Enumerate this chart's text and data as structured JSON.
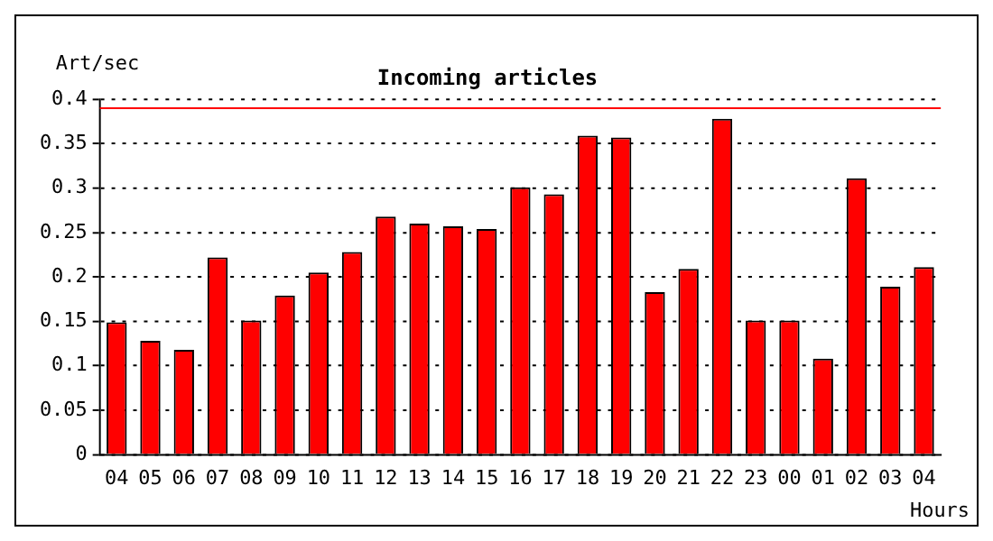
{
  "chart_data": {
    "type": "bar",
    "title": "Incoming articles",
    "ylabel": "Art/sec",
    "xlabel": "Hours",
    "categories": [
      "04",
      "05",
      "06",
      "07",
      "08",
      "09",
      "10",
      "11",
      "12",
      "13",
      "14",
      "15",
      "16",
      "17",
      "18",
      "19",
      "20",
      "21",
      "22",
      "23",
      "00",
      "01",
      "02",
      "03",
      "04"
    ],
    "values": [
      0.149,
      0.128,
      0.118,
      0.222,
      0.151,
      0.179,
      0.205,
      0.228,
      0.268,
      0.26,
      0.257,
      0.254,
      0.301,
      0.293,
      0.359,
      0.357,
      0.183,
      0.209,
      0.378,
      0.151,
      0.151,
      0.108,
      0.311,
      0.189,
      0.211
    ],
    "color": "#ff0000",
    "ylim": [
      0,
      0.4
    ],
    "yticks": [
      0,
      0.05,
      0.1,
      0.15,
      0.2,
      0.25,
      0.3,
      0.35,
      0.4
    ],
    "ref_lines": [
      {
        "axis": "y",
        "value": 0.39,
        "color": "#ff0000"
      }
    ],
    "grid": "y",
    "legend": false
  }
}
